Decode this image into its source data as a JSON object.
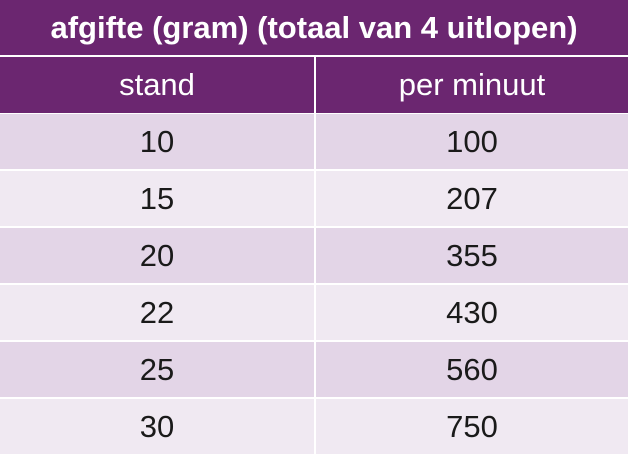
{
  "table": {
    "title": "afgifte (gram) (totaal van 4 uitlopen)",
    "header": [
      "stand",
      "per minuut"
    ],
    "rows": [
      [
        10,
        100
      ],
      [
        15,
        207
      ],
      [
        20,
        355
      ],
      [
        22,
        430
      ],
      [
        25,
        560
      ],
      [
        30,
        750
      ]
    ]
  }
}
